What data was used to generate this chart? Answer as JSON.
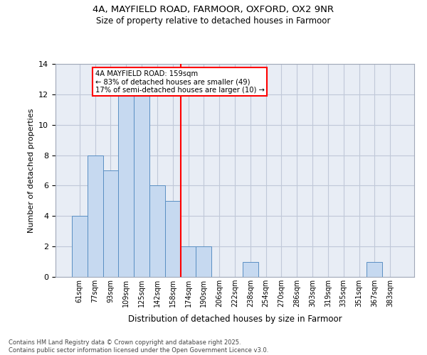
{
  "title_line1": "4A, MAYFIELD ROAD, FARMOOR, OXFORD, OX2 9NR",
  "title_line2": "Size of property relative to detached houses in Farmoor",
  "xlabel": "Distribution of detached houses by size in Farmoor",
  "ylabel": "Number of detached properties",
  "bar_labels": [
    "61sqm",
    "77sqm",
    "93sqm",
    "109sqm",
    "125sqm",
    "142sqm",
    "158sqm",
    "174sqm",
    "190sqm",
    "206sqm",
    "222sqm",
    "238sqm",
    "254sqm",
    "270sqm",
    "286sqm",
    "303sqm",
    "319sqm",
    "335sqm",
    "351sqm",
    "367sqm",
    "383sqm"
  ],
  "bar_values": [
    4,
    8,
    7,
    12,
    12,
    6,
    5,
    2,
    2,
    0,
    0,
    1,
    0,
    0,
    0,
    0,
    0,
    0,
    0,
    1,
    0
  ],
  "bar_color": "#c6d9f0",
  "bar_edgecolor": "#5a8fc3",
  "vline_color": "red",
  "vline_pos": 6.5,
  "annotation_text": "4A MAYFIELD ROAD: 159sqm\n← 83% of detached houses are smaller (49)\n17% of semi-detached houses are larger (10) →",
  "annotation_boxcolor": "white",
  "annotation_edgecolor": "red",
  "ylim": [
    0,
    14
  ],
  "yticks": [
    0,
    2,
    4,
    6,
    8,
    10,
    12,
    14
  ],
  "grid_color": "#c0c8d8",
  "bg_color": "#e8edf5",
  "footer_line1": "Contains HM Land Registry data © Crown copyright and database right 2025.",
  "footer_line2": "Contains public sector information licensed under the Open Government Licence v3.0."
}
